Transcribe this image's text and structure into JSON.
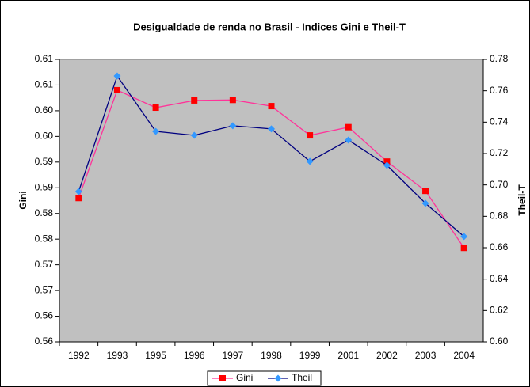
{
  "chart_data": {
    "type": "line",
    "title": "Desigualdade de renda no Brasil - Indices Gini  e Theil-T",
    "y_label": "Gini",
    "y2_label": "Theil-T",
    "categories": [
      "1992",
      "1993",
      "1995",
      "1996",
      "1997",
      "1998",
      "1999",
      "2001",
      "2002",
      "2003",
      "2004"
    ],
    "series": [
      {
        "name": "Gini",
        "color": "#ff3399",
        "marker_color": "#ff0000",
        "marker": "square",
        "axis": "y",
        "values": [
          0.588,
          0.609,
          0.6056,
          0.607,
          0.6071,
          0.6059,
          0.6002,
          0.6018,
          0.5951,
          0.5894,
          0.5783
        ]
      },
      {
        "name": "Theil",
        "color": "#000080",
        "marker_color": "#3399ff",
        "marker": "diamond",
        "axis": "y2",
        "values": [
          0.6958,
          0.7694,
          0.7341,
          0.7316,
          0.7377,
          0.7357,
          0.715,
          0.7286,
          0.7125,
          0.6883,
          0.6671
        ]
      }
    ],
    "ylim": [
      0.56,
      0.615
    ],
    "yticks": [
      0.56,
      {
        "value": 0.565,
        "label": "0.56"
      },
      0.57,
      {
        "value": 0.575,
        "label": "0.57"
      },
      0.58,
      {
        "value": 0.585,
        "label": "0.58"
      },
      0.59,
      {
        "value": 0.595,
        "label": "0.59"
      },
      {
        "value": 0.6,
        "label": "0.60"
      },
      {
        "value": 0.605,
        "label": "0.60"
      },
      0.61,
      {
        "value": 0.615,
        "label": "0.61"
      }
    ],
    "y2lim": [
      0.6,
      0.78
    ],
    "y2ticks": [
      {
        "value": 0.6,
        "label": "0.60"
      },
      0.62,
      0.64,
      0.66,
      0.68,
      {
        "value": 0.7,
        "label": "0.70"
      },
      0.72,
      0.74,
      0.76,
      0.78
    ],
    "plot_background": "#c0c0c0",
    "legend": "bottom"
  }
}
